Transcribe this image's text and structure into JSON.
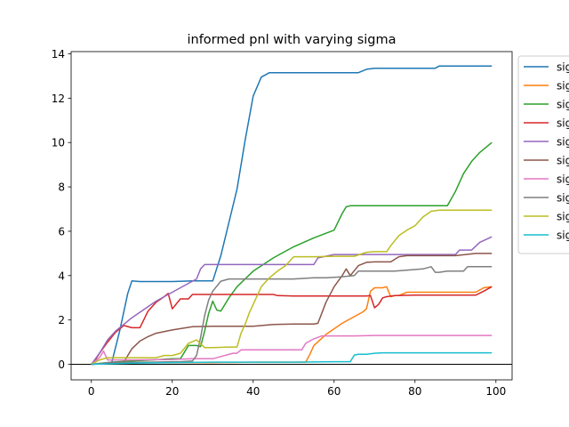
{
  "chart_data": {
    "type": "line",
    "title": "informed pnl with varying sigma",
    "xlabel": "",
    "ylabel": "",
    "xlim": [
      -5,
      104
    ],
    "ylim": [
      -0.7,
      14.1
    ],
    "xticks": [
      0,
      20,
      40,
      60,
      80,
      100
    ],
    "yticks": [
      0,
      2,
      4,
      6,
      8,
      10,
      12,
      14
    ],
    "hline": 0,
    "grid": false,
    "legend": "outside right, clipped",
    "series": [
      {
        "name": "sig",
        "color": "#1f77b4",
        "x": [
          0,
          2,
          5,
          7,
          9,
          10,
          12,
          20,
          25,
          30,
          32,
          34,
          36,
          38,
          40,
          42,
          44,
          50,
          60,
          66,
          68,
          70,
          85,
          86,
          95,
          99
        ],
        "y": [
          0,
          0.02,
          0.05,
          1.5,
          3.2,
          3.76,
          3.73,
          3.73,
          3.76,
          3.76,
          4.9,
          6.4,
          7.9,
          10.1,
          12.1,
          12.95,
          13.15,
          13.15,
          13.15,
          13.15,
          13.3,
          13.35,
          13.35,
          13.45,
          13.45,
          13.45
        ]
      },
      {
        "name": "sig",
        "color": "#ff7f0e",
        "x": [
          0,
          5,
          10,
          20,
          30,
          40,
          50,
          53,
          54,
          55,
          58,
          62,
          65,
          67,
          68,
          69,
          70,
          72,
          73,
          74,
          75,
          76,
          78,
          80,
          85,
          95,
          97,
          99
        ],
        "y": [
          0,
          0.05,
          0.07,
          0.08,
          0.08,
          0.1,
          0.1,
          0.1,
          0.45,
          0.85,
          1.35,
          1.85,
          2.15,
          2.35,
          2.5,
          3.3,
          3.45,
          3.45,
          3.5,
          3.05,
          3.1,
          3.1,
          3.25,
          3.25,
          3.25,
          3.25,
          3.45,
          3.5
        ]
      },
      {
        "name": "sig",
        "color": "#2ca02c",
        "x": [
          0,
          5,
          10,
          15,
          20,
          22,
          24,
          26,
          27,
          28,
          29,
          30,
          31,
          32,
          34,
          36,
          40,
          45,
          50,
          55,
          60,
          62,
          63,
          64,
          65,
          70,
          80,
          88,
          90,
          92,
          94,
          96,
          99
        ],
        "y": [
          0,
          0.1,
          0.15,
          0.2,
          0.25,
          0.25,
          0.85,
          0.85,
          0.8,
          1.5,
          2.3,
          2.85,
          2.45,
          2.4,
          3.0,
          3.5,
          4.2,
          4.8,
          5.3,
          5.7,
          6.05,
          6.8,
          7.1,
          7.15,
          7.15,
          7.15,
          7.15,
          7.15,
          7.8,
          8.6,
          9.15,
          9.55,
          10.0
        ]
      },
      {
        "name": "sig",
        "color": "#d62728",
        "x": [
          0,
          1,
          2,
          4,
          6,
          8,
          10,
          12,
          14,
          16,
          18,
          19,
          20,
          22,
          24,
          25,
          30,
          40,
          45,
          46,
          50,
          60,
          68,
          69,
          70,
          71,
          72,
          73,
          75,
          80,
          95,
          97,
          99
        ],
        "y": [
          0,
          0.2,
          0.5,
          1.0,
          1.45,
          1.75,
          1.65,
          1.65,
          2.4,
          2.8,
          3.05,
          3.2,
          2.5,
          2.95,
          2.95,
          3.15,
          3.15,
          3.15,
          3.15,
          3.1,
          3.08,
          3.08,
          3.08,
          3.1,
          2.55,
          2.7,
          3.0,
          3.05,
          3.1,
          3.12,
          3.12,
          3.3,
          3.5
        ]
      },
      {
        "name": "sig",
        "color": "#9467bd",
        "x": [
          0,
          2,
          4,
          6,
          8,
          10,
          12,
          14,
          16,
          18,
          20,
          22,
          24,
          26,
          27,
          28,
          30,
          40,
          50,
          55,
          56,
          60,
          70,
          80,
          90,
          91,
          94,
          96,
          99
        ],
        "y": [
          0,
          0.5,
          1.1,
          1.5,
          1.8,
          2.1,
          2.35,
          2.6,
          2.85,
          3.05,
          3.25,
          3.45,
          3.65,
          3.85,
          4.3,
          4.5,
          4.5,
          4.5,
          4.5,
          4.5,
          4.8,
          4.95,
          4.95,
          4.95,
          4.95,
          5.15,
          5.15,
          5.5,
          5.75
        ]
      },
      {
        "name": "sig",
        "color": "#8c564b",
        "x": [
          0,
          5,
          8,
          10,
          12,
          14,
          16,
          20,
          25,
          30,
          40,
          45,
          50,
          55,
          56,
          58,
          60,
          62,
          63,
          64,
          66,
          68,
          70,
          74,
          76,
          78,
          80,
          90,
          95,
          99
        ],
        "y": [
          0,
          0.05,
          0.1,
          0.7,
          1.05,
          1.25,
          1.4,
          1.55,
          1.7,
          1.72,
          1.72,
          1.8,
          1.82,
          1.82,
          1.85,
          2.8,
          3.5,
          4.0,
          4.3,
          4.0,
          4.45,
          4.6,
          4.62,
          4.62,
          4.85,
          4.9,
          4.9,
          4.9,
          5.0,
          5.0
        ]
      },
      {
        "name": "sig",
        "color": "#e377c2",
        "x": [
          0,
          2,
          3,
          4,
          5,
          10,
          20,
          25,
          30,
          35,
          36,
          37,
          38,
          40,
          45,
          52,
          53,
          55,
          57,
          60,
          65,
          70,
          80,
          90,
          99
        ],
        "y": [
          0,
          0.3,
          0.6,
          0.2,
          0.2,
          0.2,
          0.22,
          0.25,
          0.25,
          0.5,
          0.5,
          0.65,
          0.65,
          0.65,
          0.65,
          0.65,
          0.95,
          1.15,
          1.28,
          1.28,
          1.28,
          1.3,
          1.3,
          1.3,
          1.3
        ]
      },
      {
        "name": "sig",
        "color": "#7f7f7f",
        "x": [
          0,
          5,
          10,
          15,
          20,
          22,
          25,
          26,
          27,
          28,
          29,
          30,
          32,
          34,
          36,
          40,
          50,
          55,
          56,
          58,
          60,
          62,
          65,
          66,
          68,
          70,
          75,
          82,
          84,
          85,
          86,
          88,
          92,
          93,
          96,
          99
        ],
        "y": [
          0,
          0.1,
          0.1,
          0.1,
          0.12,
          0.12,
          0.15,
          0.4,
          1.2,
          2.2,
          2.9,
          3.3,
          3.75,
          3.85,
          3.85,
          3.85,
          3.85,
          3.9,
          3.9,
          3.9,
          3.92,
          3.95,
          4.0,
          4.2,
          4.2,
          4.2,
          4.2,
          4.3,
          4.4,
          4.15,
          4.15,
          4.2,
          4.2,
          4.4,
          4.4,
          4.4
        ]
      },
      {
        "name": "sig",
        "color": "#bcbd22",
        "x": [
          0,
          2,
          4,
          10,
          16,
          18,
          20,
          22,
          24,
          26,
          28,
          30,
          34,
          36,
          37,
          38,
          39,
          40,
          42,
          44,
          46,
          48,
          50,
          55,
          60,
          65,
          68,
          70,
          73,
          74,
          76,
          78,
          80,
          82,
          84,
          86,
          90,
          99
        ],
        "y": [
          0,
          0.2,
          0.3,
          0.3,
          0.3,
          0.4,
          0.4,
          0.5,
          0.95,
          1.1,
          0.75,
          0.75,
          0.78,
          0.78,
          1.4,
          1.8,
          2.3,
          2.7,
          3.5,
          3.9,
          4.2,
          4.45,
          4.85,
          4.85,
          4.87,
          4.87,
          5.05,
          5.08,
          5.08,
          5.35,
          5.8,
          6.05,
          6.25,
          6.65,
          6.9,
          6.95,
          6.95,
          6.95
        ]
      },
      {
        "name": "sig",
        "color": "#17becf",
        "x": [
          0,
          10,
          20,
          30,
          40,
          50,
          60,
          64,
          65,
          66,
          68,
          70,
          72,
          80,
          90,
          99
        ],
        "y": [
          0,
          0.05,
          0.08,
          0.1,
          0.1,
          0.1,
          0.12,
          0.12,
          0.42,
          0.45,
          0.45,
          0.5,
          0.52,
          0.52,
          0.52,
          0.52
        ]
      }
    ]
  }
}
